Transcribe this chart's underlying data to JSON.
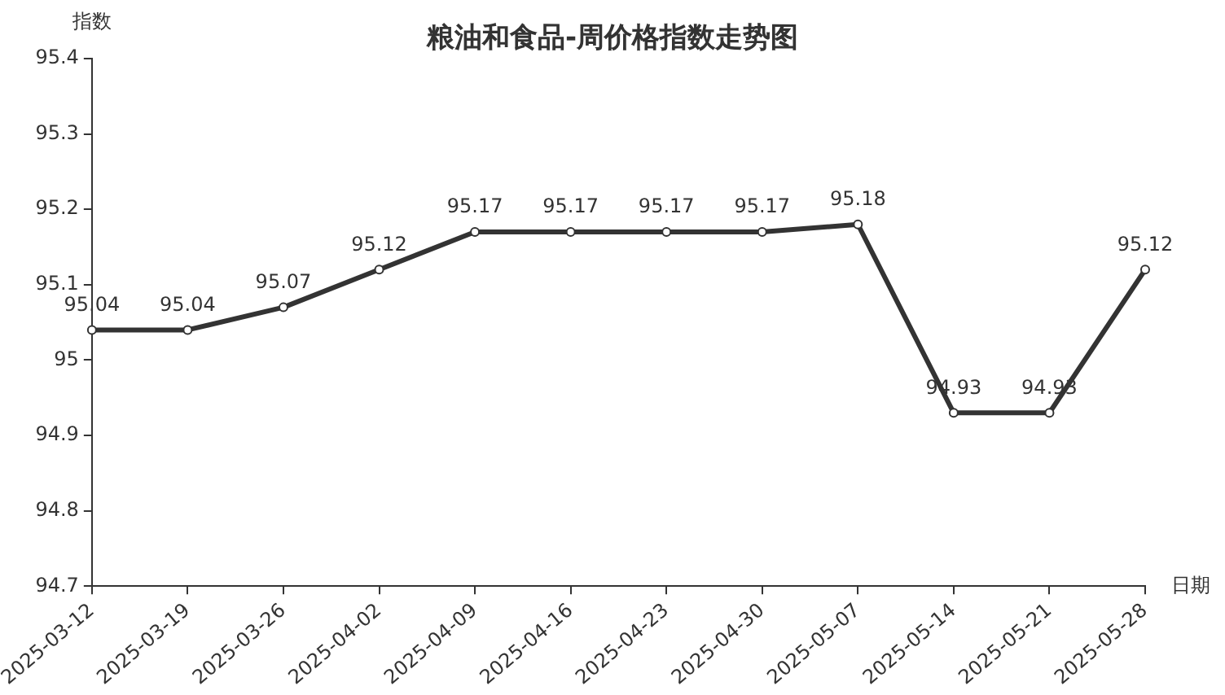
{
  "chart_data": {
    "type": "line",
    "title": "粮油和食品-周价格指数走势图",
    "xlabel": "日期",
    "ylabel": "指数",
    "categories": [
      "2025-03-12",
      "2025-03-19",
      "2025-03-26",
      "2025-04-02",
      "2025-04-09",
      "2025-04-16",
      "2025-04-23",
      "2025-04-30",
      "2025-05-07",
      "2025-05-14",
      "2025-05-21",
      "2025-05-28"
    ],
    "series": [
      {
        "color": "#333333",
        "values": [
          95.04,
          95.04,
          95.07,
          95.12,
          95.17,
          95.17,
          95.17,
          95.17,
          95.18,
          94.93,
          94.93,
          95.12
        ]
      }
    ],
    "ylim": [
      94.7,
      95.4
    ],
    "yticks": [
      94.7,
      94.8,
      94.9,
      95,
      95.1,
      95.2,
      95.3,
      95.4
    ],
    "data_labels": true,
    "marker": "circle",
    "line_style": "solid",
    "grid": false,
    "legend": false
  }
}
